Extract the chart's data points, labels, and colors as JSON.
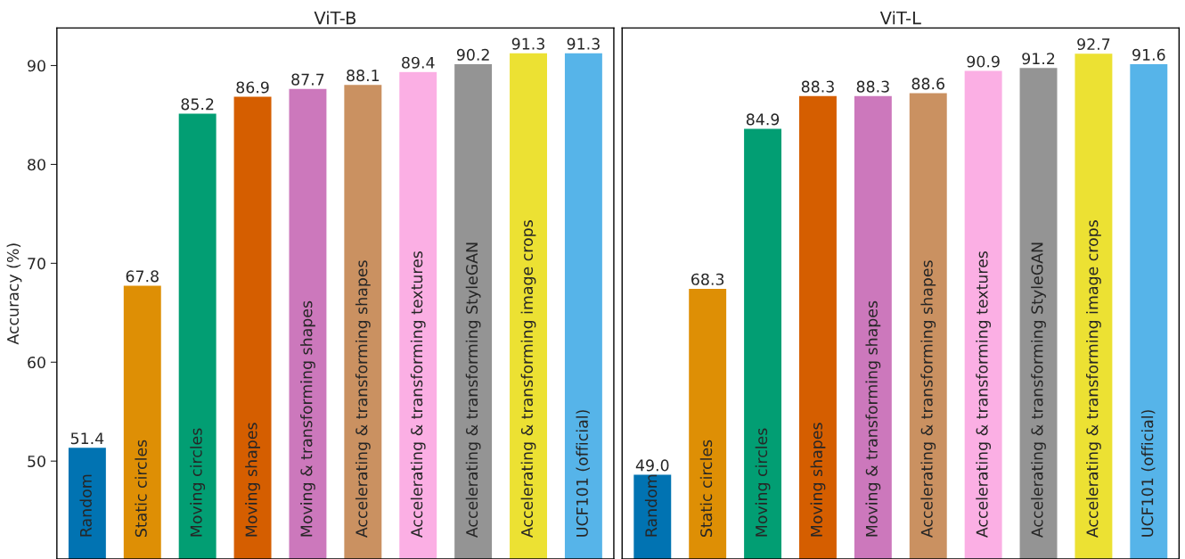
{
  "chart_data": [
    {
      "type": "bar",
      "title": "ViT-B",
      "ylabel": "Accuracy (%)",
      "categories": [
        "Random",
        "Static circles",
        "Moving circles",
        "Moving shapes",
        "Moving & transforming shapes",
        "Accelerating & transforming shapes",
        "Accelerating & transforming textures",
        "Accelerating & transforming StyleGAN",
        "Accelerating & transforming image crops",
        "UCF101 (official)"
      ],
      "values": [
        51.4,
        67.8,
        85.2,
        86.9,
        87.7,
        88.1,
        89.4,
        90.2,
        91.3,
        91.3
      ],
      "colors": [
        "#0173b2",
        "#de8f05",
        "#029e73",
        "#d55e00",
        "#cc78bc",
        "#ca9161",
        "#fbafe4",
        "#949494",
        "#ece133",
        "#56b4e9"
      ],
      "ylim": [
        40.1,
        93.8
      ],
      "yticks": [
        50,
        60,
        70,
        80,
        90
      ],
      "data_labels": true,
      "tick_labels": "y",
      "grid": false,
      "legend": false
    },
    {
      "type": "bar",
      "title": "ViT-L",
      "categories": [
        "Random",
        "Static circles",
        "Moving circles",
        "Moving shapes",
        "Moving & transforming shapes",
        "Accelerating & transforming shapes",
        "Accelerating & transforming textures",
        "Accelerating & transforming StyleGAN",
        "Accelerating & transforming image crops",
        "UCF101 (official)"
      ],
      "values": [
        49.0,
        68.3,
        84.9,
        88.3,
        88.3,
        88.6,
        90.9,
        91.2,
        92.7,
        91.6
      ],
      "colors": [
        "#0173b2",
        "#de8f05",
        "#029e73",
        "#d55e00",
        "#cc78bc",
        "#ca9161",
        "#fbafe4",
        "#949494",
        "#ece133",
        "#56b4e9"
      ],
      "value_labels": [
        "49.0",
        "68.3",
        "84.9",
        "88.3",
        "88.3",
        "88.6",
        "90.9",
        "91.2",
        "92.7",
        "91.6"
      ],
      "ylim": [
        40.2,
        95.3
      ],
      "tick_labels": false,
      "grid": false,
      "legend": false
    }
  ]
}
